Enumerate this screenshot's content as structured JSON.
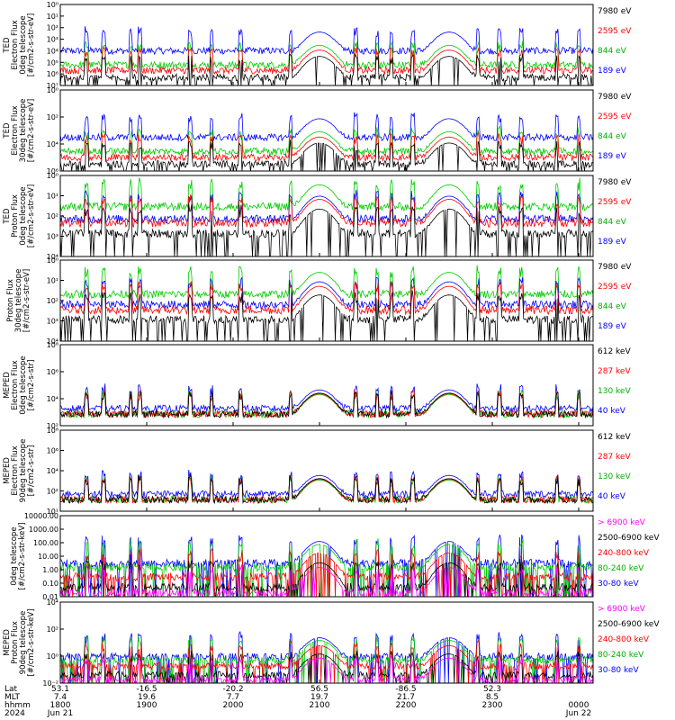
{
  "chart_data": [
    {
      "type": "line",
      "ylabel": [
        "TED",
        "Electron Flux",
        "0deg telescope",
        "[#/cm2-s-str-eV]"
      ],
      "yscale": "log",
      "ylim": [
        1,
        10000000
      ],
      "yticks": [
        "10⁰",
        "10¹",
        "10²",
        "10³",
        "10⁴",
        "10⁵",
        "10⁶",
        "10⁷"
      ],
      "legend": [
        "7980 eV",
        "2595 eV",
        "844 eV",
        "189 eV"
      ],
      "series": [
        {
          "name": "189 eV",
          "color": "#0000ff",
          "baseline": 1000,
          "peaks": [
            1700,
            2100,
            2120,
            2230
          ]
        },
        {
          "name": "844 eV",
          "color": "#00cc00",
          "baseline": 60,
          "peaks": [
            2100,
            2120,
            2230
          ]
        },
        {
          "name": "2595 eV",
          "color": "#ff0000",
          "baseline": 20,
          "peaks": [
            2100,
            2230
          ]
        },
        {
          "name": "7980 eV",
          "color": "#000000",
          "baseline": 5,
          "peaks": [
            2100,
            2230
          ]
        }
      ]
    },
    {
      "type": "line",
      "ylabel": [
        "TED",
        "Electron Flux",
        "30deg telescope",
        "[#/cm2-s-str-eV]"
      ],
      "yscale": "log",
      "ylim": [
        1,
        10000000
      ],
      "yticks": [
        "10⁰",
        "10²",
        "10⁴",
        "10⁶"
      ],
      "legend": [
        "7980 eV",
        "2595 eV",
        "844 eV",
        "189 eV"
      ],
      "series": [
        {
          "name": "189 eV",
          "color": "#0000ff",
          "baseline": 800
        },
        {
          "name": "844 eV",
          "color": "#00cc00",
          "baseline": 50
        },
        {
          "name": "2595 eV",
          "color": "#ff0000",
          "baseline": 15
        },
        {
          "name": "7980 eV",
          "color": "#000000",
          "baseline": 4
        }
      ]
    },
    {
      "type": "line",
      "ylabel": [
        "TED",
        "Proton Flux",
        "0deg telescope",
        "[#/cm2-s-str-eV]"
      ],
      "yscale": "log",
      "ylim": [
        0.1,
        100000
      ],
      "yticks": [
        "10⁰",
        "10¹",
        "10²",
        "10³",
        "10⁴"
      ],
      "legend": [
        "7980 eV",
        "2595 eV",
        "844 eV",
        "189 eV"
      ],
      "series": [
        {
          "name": "844 eV",
          "color": "#00cc00",
          "baseline": 500
        },
        {
          "name": "189 eV",
          "color": "#0000ff",
          "baseline": 60
        },
        {
          "name": "2595 eV",
          "color": "#ff0000",
          "baseline": 30
        },
        {
          "name": "7980 eV",
          "color": "#000000",
          "baseline": 5
        }
      ]
    },
    {
      "type": "line",
      "ylabel": [
        "Proton Flux",
        "30deg telescope",
        "[#/cm2-s-str-eV]"
      ],
      "yscale": "log",
      "ylim": [
        0.1,
        100000
      ],
      "yticks": [
        "10⁰",
        "10¹",
        "10²",
        "10³",
        "10⁴"
      ],
      "legend": [
        "7980 eV",
        "2595 eV",
        "844 eV",
        "189 eV"
      ],
      "series": [
        {
          "name": "844 eV",
          "color": "#00cc00",
          "baseline": 300
        },
        {
          "name": "189 eV",
          "color": "#0000ff",
          "baseline": 50
        },
        {
          "name": "2595 eV",
          "color": "#ff0000",
          "baseline": 20
        },
        {
          "name": "7980 eV",
          "color": "#000000",
          "baseline": 4
        }
      ]
    },
    {
      "type": "line",
      "ylabel": [
        "MEPED",
        "Electron Flux",
        "0deg telescope",
        "[#/cm2-s-str]"
      ],
      "yscale": "log",
      "ylim": [
        10,
        100000000
      ],
      "yticks": [
        "10⁸",
        "10⁶",
        "10⁴",
        "10²"
      ],
      "legend": [
        "612 keV",
        "287 keV",
        "130 keV",
        "40 keV"
      ],
      "series": [
        {
          "name": "40 keV",
          "color": "#0000ff",
          "baseline": 300
        },
        {
          "name": "130 keV",
          "color": "#00cc00",
          "baseline": 100
        },
        {
          "name": "287 keV",
          "color": "#ff0000",
          "baseline": 100
        },
        {
          "name": "612 keV",
          "color": "#000000",
          "baseline": 100
        }
      ]
    },
    {
      "type": "line",
      "ylabel": [
        "MEPED",
        "Electron Flux",
        "90deg telescope",
        "[#/cm2-s-str]"
      ],
      "yscale": "log",
      "ylim": [
        10,
        100000000
      ],
      "yticks": [
        "10⁸",
        "10⁶",
        "10⁴",
        "10²",
        "10¹"
      ],
      "legend": [
        "612 keV",
        "287 keV",
        "130 keV",
        "40 keV"
      ],
      "series": [
        {
          "name": "40 keV",
          "color": "#0000ff",
          "baseline": 300
        },
        {
          "name": "130 keV",
          "color": "#00cc00",
          "baseline": 100
        },
        {
          "name": "287 keV",
          "color": "#ff0000",
          "baseline": 100
        },
        {
          "name": "612 keV",
          "color": "#000000",
          "baseline": 100
        }
      ]
    },
    {
      "type": "line",
      "ylabel": [
        "0deg telescope",
        "[#/cm2-s-str-keV]"
      ],
      "yscale": "log",
      "ylim": [
        0.01,
        10000
      ],
      "yticks": [
        "10000.00",
        "1000.00",
        "100.00",
        "10.00",
        "1.00",
        "0.10",
        "0.01"
      ],
      "legend": [
        "> 6900 keV",
        "2500-6900 keV",
        "240-800 keV",
        "80-240 keV",
        "30-80 keV"
      ],
      "series": [
        {
          "name": "30-80 keV",
          "color": "#0000ff",
          "baseline": 3
        },
        {
          "name": "80-240 keV",
          "color": "#00cc00",
          "baseline": 1.5
        },
        {
          "name": "240-800 keV",
          "color": "#ff0000",
          "baseline": 0.3
        },
        {
          "name": "2500-6900 keV",
          "color": "#000000",
          "baseline": 0.05
        },
        {
          "name": "> 6900 keV",
          "color": "#ff00ff",
          "baseline": 0.02
        }
      ]
    },
    {
      "type": "line",
      "ylabel": [
        "MEPED",
        "Proton Flux",
        "90deg telescope",
        "[#/cm2-s-str-keV]"
      ],
      "yscale": "log",
      "ylim": [
        0.01,
        100000
      ],
      "yticks": [
        "10⁴",
        "10²",
        "10⁰",
        "10⁻²"
      ],
      "legend": [
        "> 6900 keV",
        "2500-6900 keV",
        "240-800 keV",
        "80-240 keV",
        "30-80 keV"
      ],
      "series": [
        {
          "name": "30-80 keV",
          "color": "#0000ff",
          "baseline": 2
        },
        {
          "name": "80-240 keV",
          "color": "#00cc00",
          "baseline": 1
        },
        {
          "name": "240-800 keV",
          "color": "#ff0000",
          "baseline": 0.3
        },
        {
          "name": "2500-6900 keV",
          "color": "#000000",
          "baseline": 0.05
        },
        {
          "name": "> 6900 keV",
          "color": "#ff00ff",
          "baseline": 0.02
        }
      ]
    }
  ],
  "x_axis": {
    "row_labels": [
      "Lat",
      "MLT",
      "hhmm",
      "2024"
    ],
    "ticks": [
      {
        "lat": "53.1",
        "mlt": "7.4",
        "hhmm": "1800",
        "date": "Jun 21"
      },
      {
        "lat": "-16.5",
        "mlt": "19.6",
        "hhmm": "1900",
        "date": ""
      },
      {
        "lat": "-20.2",
        "mlt": "7.7",
        "hhmm": "2000",
        "date": ""
      },
      {
        "lat": "56.5",
        "mlt": "19.7",
        "hhmm": "2100",
        "date": ""
      },
      {
        "lat": "-86.5",
        "mlt": "21.7",
        "hhmm": "2200",
        "date": ""
      },
      {
        "lat": "52.3",
        "mlt": "8.5",
        "hhmm": "2300",
        "date": ""
      },
      {
        "lat": "",
        "mlt": "",
        "hhmm": "0000",
        "date": "Jun 22"
      }
    ]
  }
}
